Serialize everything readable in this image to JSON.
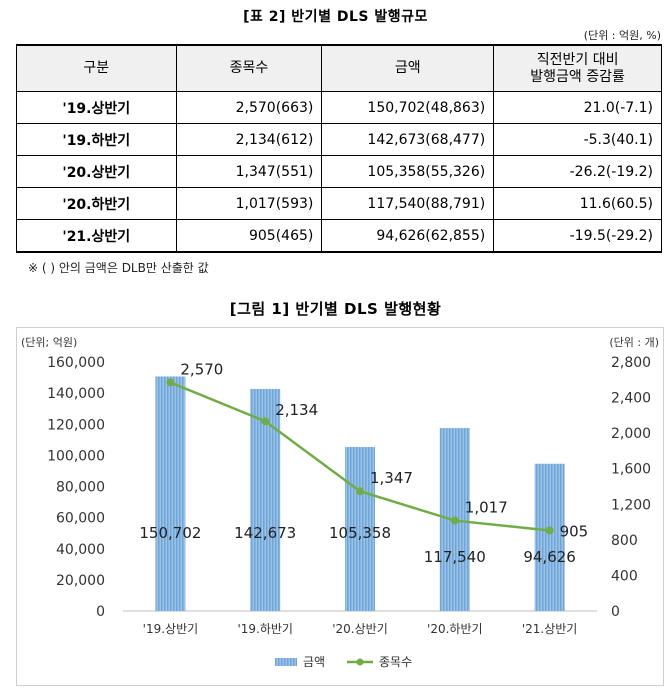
{
  "table": {
    "title": "[표 2] 반기별 DLS 발행규모",
    "unit": "(단위 : 억원, %)",
    "headers": [
      "구분",
      "종목수",
      "금액",
      "직전반기 대비",
      "발행금액 증감률"
    ],
    "rows": [
      [
        "'19.상반기",
        "2,570(663)",
        "150,702(48,863)",
        "21.0(-7.1)"
      ],
      [
        "'19.하반기",
        "2,134(612)",
        "142,673(68,477)",
        "-5.3(40.1)"
      ],
      [
        "'20.상반기",
        "1,347(551)",
        "105,358(55,326)",
        "-26.2(-19.2)"
      ],
      [
        "'20.하반기",
        "1,017(593)",
        "117,540(88,791)",
        "11.6(60.5)"
      ],
      [
        "'21.상반기",
        "905(465)",
        "94,626(62,855)",
        "-19.5(-29.2)"
      ]
    ],
    "note": "※ (  ) 안의 금액은 DLB만 산출한 값"
  },
  "chart_data": {
    "type": "bar",
    "title": "[그림 1] 반기별 DLS 발행현황",
    "left_axis_unit": "(단위; 억원)",
    "right_axis_unit": "(단위 : 개)",
    "categories": [
      "'19.상반기",
      "'19.하반기",
      "'20.상반기",
      "'20.하반기",
      "'21.상반기"
    ],
    "series": [
      {
        "name": "금액",
        "type": "bar",
        "axis": "left",
        "values": [
          150702,
          142673,
          105358,
          117540,
          94626
        ],
        "labels": [
          "150,702",
          "142,673",
          "105,358",
          "117,540",
          "94,626"
        ],
        "color": "#5b9bd5"
      },
      {
        "name": "종목수",
        "type": "line",
        "axis": "right",
        "values": [
          2570,
          2134,
          1347,
          1017,
          905
        ],
        "labels": [
          "2,570",
          "2,134",
          "1,347",
          "1,017",
          "905"
        ],
        "color": "#70ad47"
      }
    ],
    "left_ylim": [
      0,
      160000
    ],
    "left_ticks": [
      "0",
      "20,000",
      "40,000",
      "60,000",
      "80,000",
      "100,000",
      "120,000",
      "140,000",
      "160,000"
    ],
    "right_ylim": [
      0,
      2800
    ],
    "right_ticks": [
      "0",
      "400",
      "800",
      "1,200",
      "1,600",
      "2,000",
      "2,400",
      "2,800"
    ],
    "grid": false,
    "legend": "bottom"
  }
}
